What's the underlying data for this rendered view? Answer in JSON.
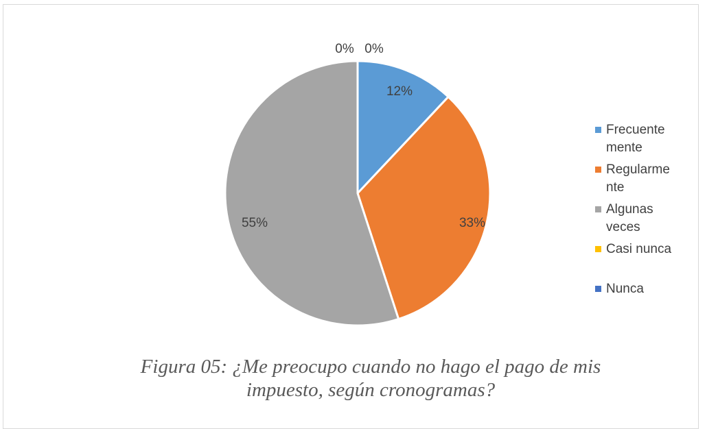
{
  "chart_data": {
    "type": "pie",
    "categories": [
      "Frecuente mente",
      "Regularme nte",
      "Algunas veces",
      "Casi nunca",
      "Nunca"
    ],
    "legend_lines": [
      [
        "Frecuente",
        "mente"
      ],
      [
        "Regularme",
        "nte"
      ],
      [
        "Algunas",
        "veces"
      ],
      [
        "Casi nunca"
      ],
      [
        "Nunca"
      ]
    ],
    "values": [
      12,
      33,
      55,
      0,
      0
    ],
    "labels": [
      "12%",
      "33%",
      "55%",
      "0%",
      "0%"
    ],
    "colors": [
      "#5b9bd5",
      "#ed7d31",
      "#a5a5a5",
      "#ffc000",
      "#4472c4"
    ],
    "legend_position": "right"
  },
  "caption": {
    "line1": "Figura 05: ¿Me preocupo cuando no hago el pago de mis",
    "line2": "impuesto, según cronogramas?"
  }
}
